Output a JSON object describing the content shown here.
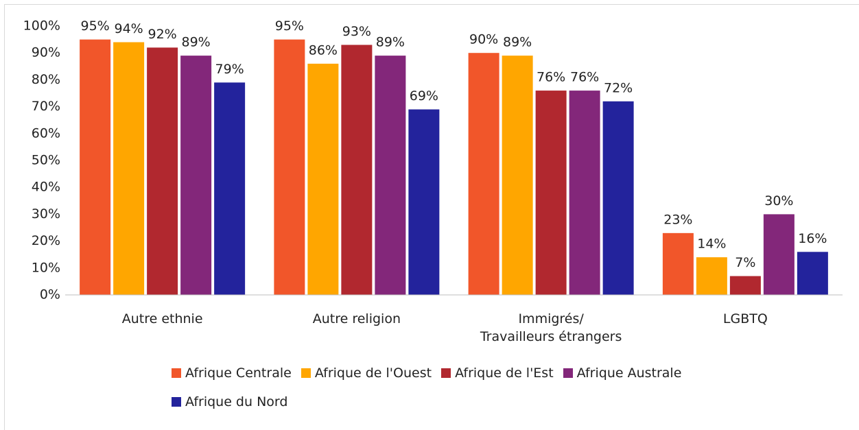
{
  "chart_data": {
    "type": "bar",
    "categories": [
      "Autre ethnie",
      "Autre religion",
      "Immigrés/\nTravailleurs étrangers",
      "LGBTQ"
    ],
    "series": [
      {
        "name": "Afrique Centrale",
        "color": "#f1562a",
        "values": [
          95,
          95,
          90,
          23
        ],
        "value_labels": [
          "95%",
          "95%",
          "90%",
          "23%"
        ]
      },
      {
        "name": "Afrique de l'Ouest",
        "color": "#ffa600",
        "values": [
          94,
          86,
          89,
          14
        ],
        "value_labels": [
          "94%",
          "86%",
          "89%",
          "14%"
        ]
      },
      {
        "name": "Afrique de l'Est",
        "color": "#b1282f",
        "values": [
          92,
          93,
          76,
          7
        ],
        "value_labels": [
          "92%",
          "93%",
          "76%",
          "7%"
        ]
      },
      {
        "name": "Afrique Australe",
        "color": "#83277a",
        "values": [
          89,
          89,
          76,
          30
        ],
        "value_labels": [
          "89%",
          "89%",
          "76%",
          "30%"
        ]
      },
      {
        "name": "Afrique du Nord",
        "color": "#23239c",
        "values": [
          79,
          69,
          72,
          16
        ],
        "value_labels": [
          "79%",
          "69%",
          "72%",
          "16%"
        ]
      }
    ],
    "ylim": [
      0,
      100
    ],
    "yticks": [
      {
        "value": 0,
        "label": "0%"
      },
      {
        "value": 10,
        "label": "10%"
      },
      {
        "value": 20,
        "label": "20%"
      },
      {
        "value": 30,
        "label": "30%"
      },
      {
        "value": 40,
        "label": "40%"
      },
      {
        "value": 50,
        "label": "50%"
      },
      {
        "value": 60,
        "label": "60%"
      },
      {
        "value": 70,
        "label": "70%"
      },
      {
        "value": 80,
        "label": "80%"
      },
      {
        "value": 90,
        "label": "90%"
      },
      {
        "value": 100,
        "label": "100%"
      }
    ],
    "grid": false,
    "legend": "bottom"
  }
}
